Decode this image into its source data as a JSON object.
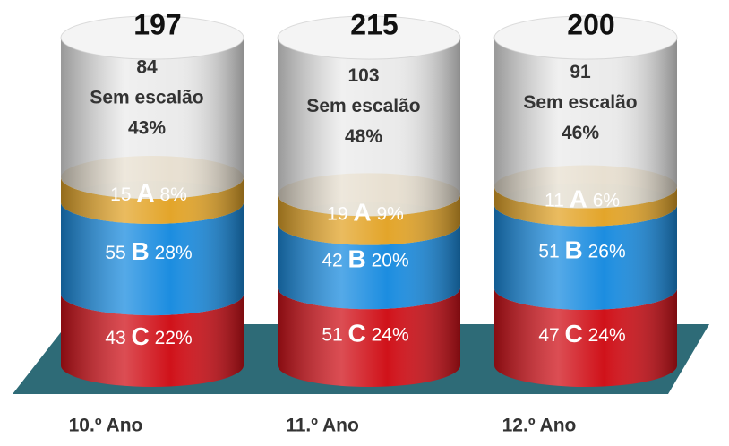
{
  "chart_data": {
    "type": "bar",
    "stacked": true,
    "categories": [
      "10.º Ano",
      "11.º Ano",
      "12.º Ano"
    ],
    "totals": [
      197,
      215,
      200
    ],
    "series": [
      {
        "name": "C",
        "color": "#d0121a",
        "values": [
          43,
          51,
          47
        ],
        "percent_labels": [
          "22%",
          "24%",
          "24%"
        ]
      },
      {
        "name": "B",
        "color": "#1c8de0",
        "values": [
          55,
          42,
          51
        ],
        "percent_labels": [
          "28%",
          "20%",
          "26%"
        ]
      },
      {
        "name": "A",
        "color": "#e3a52a",
        "values": [
          15,
          19,
          11
        ],
        "percent_labels": [
          "8%",
          "9%",
          "6%"
        ]
      },
      {
        "name": "Sem escalão",
        "color": "#e6e6e6",
        "values": [
          84,
          103,
          91
        ],
        "percent_labels": [
          "43%",
          "48%",
          "46%"
        ]
      }
    ]
  }
}
